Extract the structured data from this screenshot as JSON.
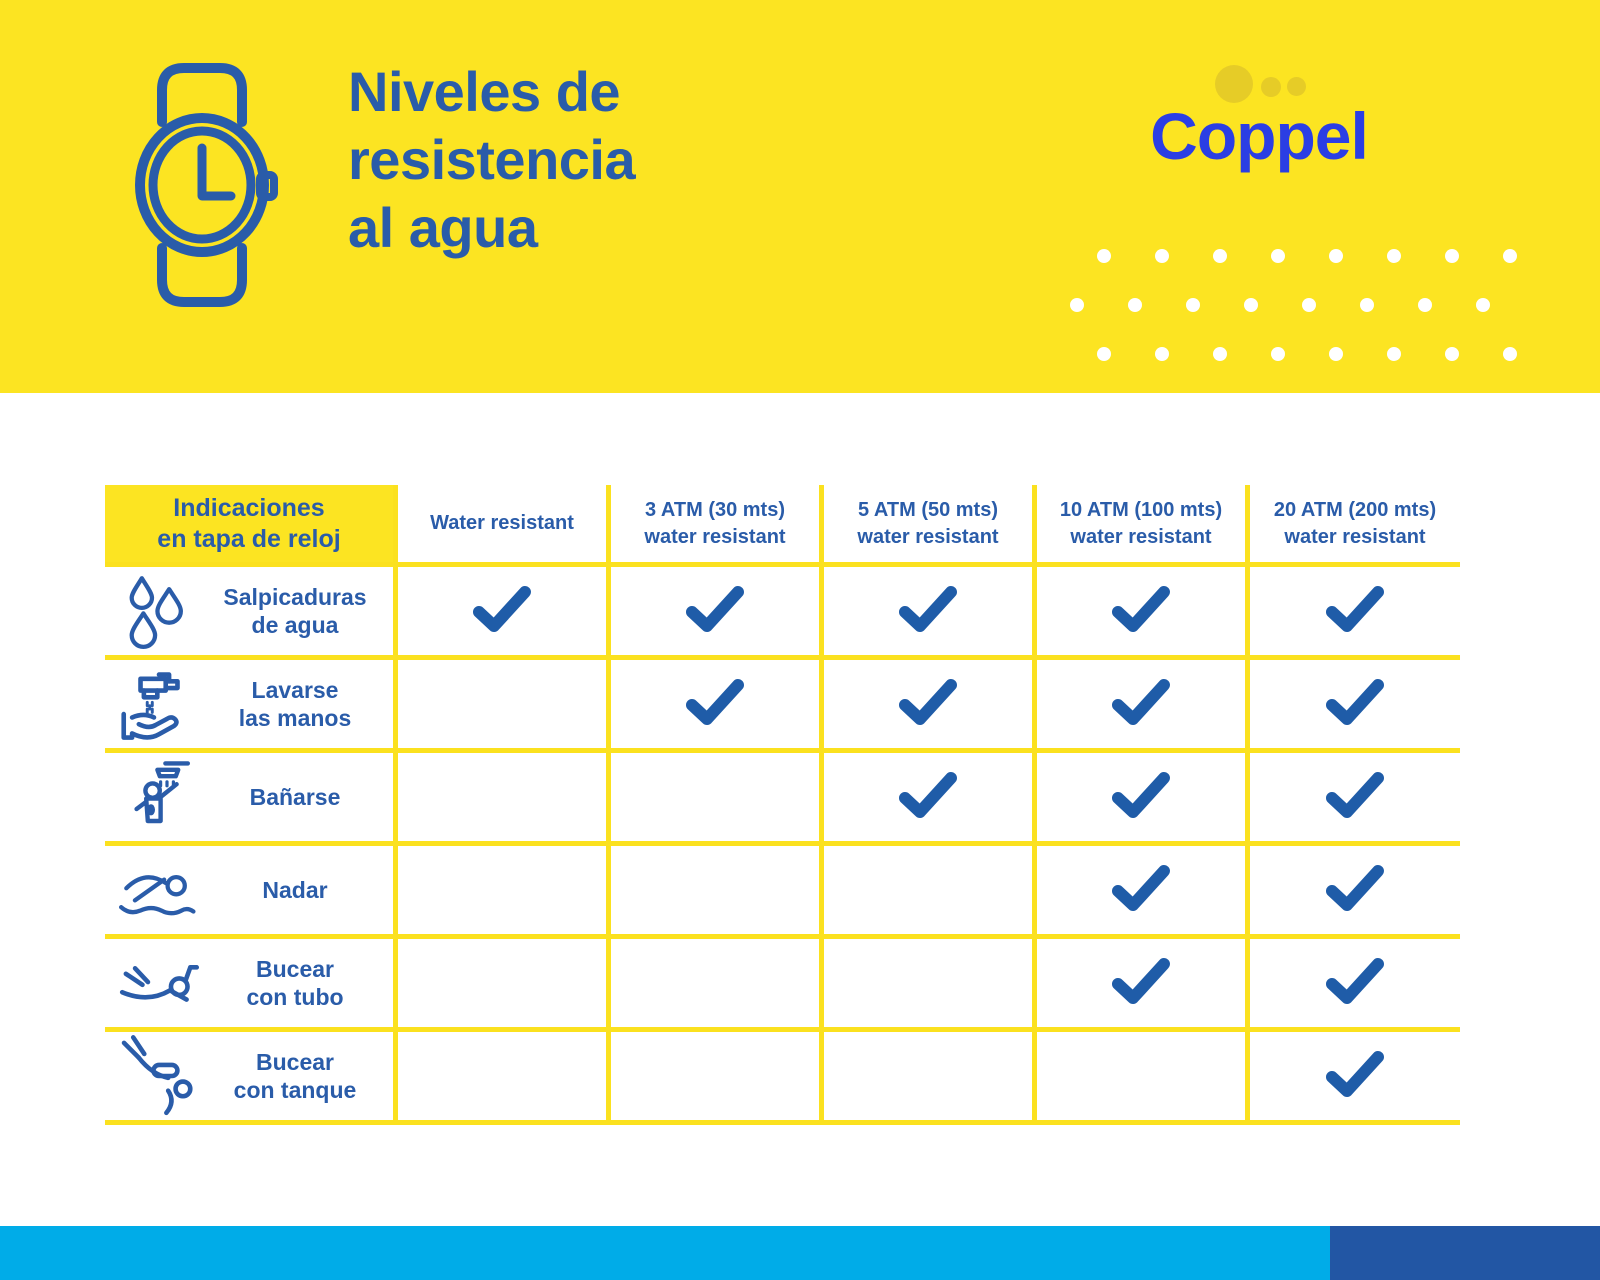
{
  "page": {
    "brand": "Coppel",
    "title_lines": [
      "Niveles de",
      "resistencia",
      "al agua"
    ]
  },
  "colors": {
    "band_yellow": "#FCE422",
    "accent_yellow": "#FBE11F",
    "muted_yellow_circle": "#E6CC27",
    "title_blue": "#2A5CA9",
    "coppel_blue": "#2B3EE4",
    "check_blue": "#1F5CA8",
    "cyan_bar": "#00ACE8",
    "dark_blue_bar": "#2256A4",
    "white": "#FFFFFF"
  },
  "icons": {
    "header": "watch-icon",
    "check": "checkmark-icon",
    "decor": [
      "dots-pattern",
      "brand-circles"
    ]
  },
  "table": {
    "corner_lines": [
      "Indicaciones",
      "en tapa de reloj"
    ],
    "column_lines": [
      [
        "Water resistant"
      ],
      [
        "3 ATM (30 mts)",
        "water resistant"
      ],
      [
        "5 ATM (50 mts)",
        "water resistant"
      ],
      [
        "10 ATM (100 mts)",
        "water resistant"
      ],
      [
        "20 ATM (200 mts)",
        "water resistant"
      ]
    ],
    "rows": [
      {
        "icon": "water-drops-icon",
        "lines": [
          "Salpicaduras",
          "de agua"
        ],
        "checks": [
          true,
          true,
          true,
          true,
          true
        ]
      },
      {
        "icon": "faucet-hand-icon",
        "lines": [
          "Lavarse",
          "las manos"
        ],
        "checks": [
          false,
          true,
          true,
          true,
          true
        ]
      },
      {
        "icon": "shower-icon",
        "lines": [
          "Bañarse"
        ],
        "checks": [
          false,
          false,
          true,
          true,
          true
        ]
      },
      {
        "icon": "swimmer-icon",
        "lines": [
          "Nadar"
        ],
        "checks": [
          false,
          false,
          false,
          true,
          true
        ]
      },
      {
        "icon": "snorkel-icon",
        "lines": [
          "Bucear",
          "con tubo"
        ],
        "checks": [
          false,
          false,
          false,
          true,
          true
        ]
      },
      {
        "icon": "scuba-icon",
        "lines": [
          "Bucear",
          "con tanque"
        ],
        "checks": [
          false,
          false,
          false,
          false,
          true
        ]
      }
    ]
  },
  "chart_data": {
    "type": "table",
    "title": "Niveles de resistencia al agua",
    "row_header": "Indicaciones en tapa de reloj",
    "columns": [
      "Water resistant",
      "3 ATM (30 mts) water resistant",
      "5 ATM (50 mts) water resistant",
      "10 ATM (100 mts) water resistant",
      "20 ATM (200 mts) water resistant"
    ],
    "rows": [
      "Salpicaduras de agua",
      "Lavarse las manos",
      "Bañarse",
      "Nadar",
      "Bucear con tubo",
      "Bucear con tanque"
    ],
    "checks": [
      [
        1,
        1,
        1,
        1,
        1
      ],
      [
        0,
        1,
        1,
        1,
        1
      ],
      [
        0,
        0,
        1,
        1,
        1
      ],
      [
        0,
        0,
        0,
        1,
        1
      ],
      [
        0,
        0,
        0,
        1,
        1
      ],
      [
        0,
        0,
        0,
        0,
        1
      ]
    ]
  }
}
